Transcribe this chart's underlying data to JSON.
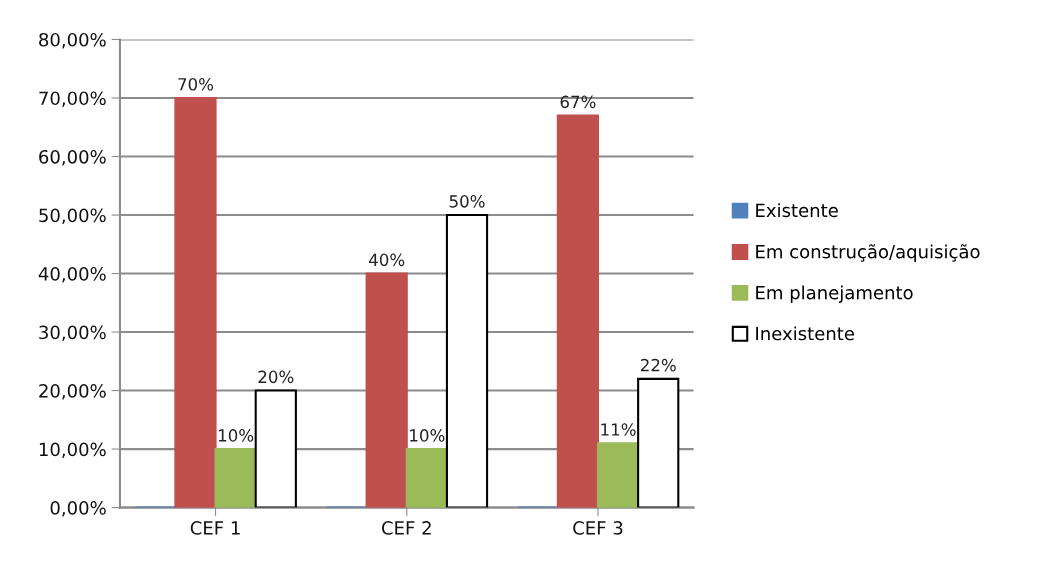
{
  "chart_data": {
    "type": "bar",
    "categories": [
      "CEF 1",
      "CEF 2",
      "CEF 3"
    ],
    "series": [
      {
        "name": "Existente",
        "color": "#4f81bd",
        "values": [
          0,
          0,
          0
        ]
      },
      {
        "name": "Em construção/aquisição",
        "color": "#c0504d",
        "values": [
          70,
          40,
          67
        ],
        "value_labels": [
          "70%",
          "40%",
          "67%"
        ]
      },
      {
        "name": "Em planejamento",
        "color": "#9bbb59",
        "values": [
          10,
          10,
          11
        ],
        "value_labels": [
          "10%",
          "10%",
          "11%"
        ]
      },
      {
        "name": "Inexistente",
        "color": "#ffffff",
        "values": [
          20,
          50,
          22
        ],
        "value_labels": [
          "20%",
          "50%",
          "22%"
        ]
      }
    ],
    "ylim": [
      0,
      80
    ],
    "yticks": [
      {
        "value": 0,
        "label": "0,00%"
      },
      {
        "value": 10,
        "label": "10,00%"
      },
      {
        "value": 20,
        "label": "20,00%"
      },
      {
        "value": 30,
        "label": "30,00%"
      },
      {
        "value": 40,
        "label": "40,00%"
      },
      {
        "value": 50,
        "label": "50,00%"
      },
      {
        "value": 60,
        "label": "60,00%"
      },
      {
        "value": 70,
        "label": "70,00%"
      },
      {
        "value": 80,
        "label": "80,00%"
      }
    ],
    "grid": "y",
    "legend": "right"
  }
}
